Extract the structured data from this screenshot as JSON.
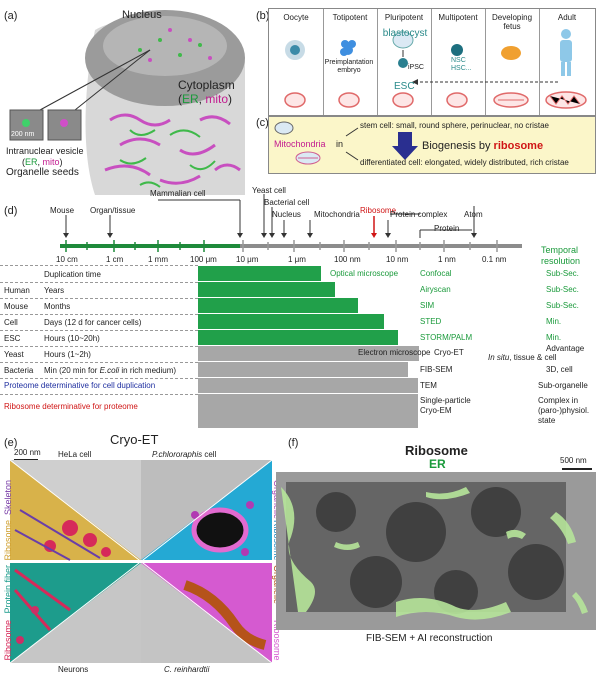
{
  "panel_a": {
    "label": "(a)",
    "nucleus": "Nucleus",
    "cytoplasm": "Cytoplasm",
    "cytoplasm_paren_open": "(",
    "cytoplasm_er": "ER",
    "cytoplasm_sep": ", ",
    "cytoplasm_mito": "mito",
    "cytoplasm_paren_close": ")",
    "scale": "200 nm",
    "vesicle_line1": "Intranuclear vesicle",
    "vesicle_paren_open": "(",
    "vesicle_er": "ER",
    "vesicle_sep": ", ",
    "vesicle_mito": "mito",
    "vesicle_paren_close": ")",
    "seeds": "Organelle seeds"
  },
  "panel_b": {
    "label": "(b)",
    "stages": [
      "Oocyte",
      "Totipotent",
      "Pluripotent",
      "Multipotent",
      "Developing fetus",
      "Adult"
    ],
    "preimplantation": "Preimplantation\nembryo",
    "blastocyst": "blastocyst",
    "ipsc": "iPSC",
    "esc": "ESC",
    "nsc": "NSC",
    "hsc": "HSC..."
  },
  "panel_c": {
    "label": "(c)",
    "mito_label": "Mitochondria",
    "in_word": "in",
    "stem_text": "stem cell: small, round sphere, perinuclear, no cristae",
    "diff_text": "differentiated cell: elongated, widely distributed, rich cristae",
    "biogenesis_prefix": "Biogenesis by ",
    "biogenesis_word": "ribosome"
  },
  "panel_d": {
    "label": "(d)",
    "objects": [
      "Mouse",
      "Organ/tissue",
      "Mammalian cell",
      "Yeast cell",
      "Bacterial cell",
      "Nucleus",
      "Mitochondria",
      "Ribosome",
      "Protein complex",
      "Protein",
      "Atom"
    ],
    "scale_ticks": [
      "10 cm",
      "1 cm",
      "1 mm",
      "100 μm",
      "10 μm",
      "1 μm",
      "100 nm",
      "10 nm",
      "1 nm",
      "0.1 nm"
    ],
    "temporal_resolution": "Temporal\nresolution",
    "duplication_header": "Duplication   time",
    "rows": [
      {
        "organism": "Human",
        "time": "Years"
      },
      {
        "organism": "Mouse",
        "time": "Months"
      },
      {
        "organism": "Cell",
        "time": "Days (12 d for cancer cells)"
      },
      {
        "organism": "ESC",
        "time": "Hours (10~20h)"
      },
      {
        "organism": "Yeast",
        "time": "Hours (1~2h)"
      },
      {
        "organism": "Bacteria",
        "time_prefix": "Min (20 min for ",
        "time_italic": "E.coli",
        "time_suffix": " in rich medium)"
      }
    ],
    "proteome_note": "Proteome determinative for cell duplication",
    "ribosome_note": "Ribosome determinative for proteome",
    "optical": "Optical microscope",
    "electron": "Electron microscope",
    "methods": [
      "Confocal",
      "Airyscan",
      "SIM",
      "STED",
      "STORM/PALM",
      "Cryo-ET",
      "FIB-SEM",
      "TEM",
      "Single-particle\nCryo-EM"
    ],
    "resolutions": [
      "Sub-Sec.",
      "Sub-Sec.",
      "Sub-Sec.",
      "Min.",
      "Min.",
      "Advantage",
      "3D, cell",
      "Sub-organelle",
      "Complex in\n(paro-)physiol.\nstate"
    ],
    "cryo_et_adv_prefix": "In situ",
    "cryo_et_adv_suffix": ", tissue & cell"
  },
  "panel_e": {
    "label": "(e)",
    "title": "Cryo-ET",
    "scale": "200 nm",
    "hela": "HeLa cell",
    "pchloro_italic": "P.chlororaphis",
    "pchloro_suffix": " cell",
    "neurons": "Neurons",
    "creinhardtii": "C. reinhardtii",
    "skeleton": "Skeleton",
    "ribosome": "Ribosome",
    "organelle": "Organelle",
    "protein_fiber": "Protein fiber"
  },
  "panel_f": {
    "label": "(f)",
    "title1": "Ribosome",
    "title2": "ER",
    "scale": "500 nm",
    "caption": "FIB-SEM + AI reconstruction"
  }
}
